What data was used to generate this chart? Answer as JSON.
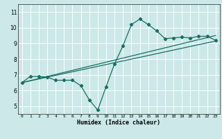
{
  "xlabel": "Humidex (Indice chaleur)",
  "xlim": [
    -0.5,
    23.5
  ],
  "ylim": [
    4.5,
    11.5
  ],
  "yticks": [
    5,
    6,
    7,
    8,
    9,
    10,
    11
  ],
  "xticks": [
    0,
    1,
    2,
    3,
    4,
    5,
    6,
    7,
    8,
    9,
    10,
    11,
    12,
    13,
    14,
    15,
    16,
    17,
    18,
    19,
    20,
    21,
    22,
    23
  ],
  "bg_color": "#cce8e8",
  "grid_color": "#ffffff",
  "line_color": "#1a6e64",
  "series1_x": [
    0,
    1,
    2,
    3,
    4,
    5,
    6,
    7,
    8,
    9,
    10,
    11,
    12,
    13,
    14,
    15,
    16,
    17,
    18,
    19,
    20,
    21,
    22,
    23
  ],
  "series1_y": [
    6.5,
    6.9,
    6.9,
    6.85,
    6.65,
    6.65,
    6.65,
    6.3,
    5.4,
    4.75,
    6.25,
    7.7,
    8.85,
    10.2,
    10.55,
    10.2,
    9.8,
    9.3,
    9.35,
    9.4,
    9.35,
    9.45,
    9.45,
    9.2
  ],
  "series2_x": [
    0,
    23
  ],
  "series2_y": [
    6.5,
    9.15
  ],
  "series3_x": [
    0,
    23
  ],
  "series3_y": [
    6.5,
    9.5
  ]
}
